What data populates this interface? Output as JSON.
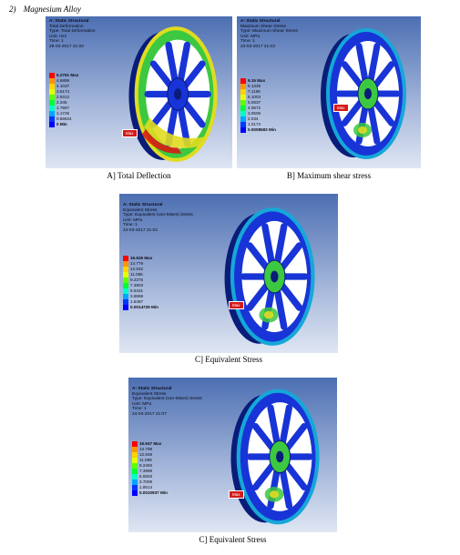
{
  "heading": {
    "number": "2)",
    "text": "Magnesium Alloy"
  },
  "panels": [
    {
      "caption": "A] Total Deflection",
      "info": [
        "A: Static Structural",
        "Total Deformation",
        "Type: Total Deformation",
        "Unit: mm",
        "Time: 1",
        "29-03-2017 21:00"
      ],
      "legend_max": "5.2761 Max",
      "legend_values": [
        "4.6899",
        "4.1037",
        "3.5174",
        "2.9312",
        "2.345",
        "1.7587",
        "1.1725",
        "0.58624"
      ],
      "legend_min": "0 Min",
      "max_tag": "Max"
    },
    {
      "caption": "B] Maximum shear stress",
      "info": [
        "A: Static Structural",
        "Maximum Shear Stress",
        "Type: Maximum Shear Stress",
        "Unit: MPa",
        "Time: 1",
        "24-03-2017 21:03"
      ],
      "legend_max": "9.15 Max",
      "legend_values": [
        "8.1335",
        "7.1169",
        "6.1003",
        "5.0837",
        "4.0672",
        "3.0506",
        "2.034",
        "1.0174"
      ],
      "legend_min": "0.0008583 Min",
      "max_tag": "Max"
    },
    {
      "caption": "C] Equivalent Stress",
      "info": [
        "A: Static Structural",
        "Equivalent Stress",
        "Type: Equivalent (von-Mises) Stress",
        "Unit: MPa",
        "Time: 1",
        "24-03-2017 21:03"
      ],
      "legend_max": "16.626 Max",
      "legend_values": [
        "14.779",
        "12.932",
        "11.085",
        "9.2375",
        "7.3903",
        "5.5431",
        "3.6959",
        "1.8487"
      ],
      "legend_min": "0.0014729 Min",
      "max_tag": "Max"
    },
    {
      "caption": "C] Equivalent Stress",
      "info": [
        "A: Static Structural",
        "Equivalent Stress",
        "Type: Equivalent (von-Mises) Stress",
        "Unit: MPa",
        "Time: 1",
        "24-03-2017 21:07"
      ],
      "legend_max": "16.647 Max",
      "legend_values": [
        "14.798",
        "12.948",
        "11.099",
        "9.2493",
        "7.3998",
        "5.5503",
        "3.7008",
        "1.8514"
      ],
      "legend_min": "0.0010937 Min",
      "max_tag": "Max"
    }
  ],
  "legend_colors": [
    "#ff0000",
    "#ff9400",
    "#ffd200",
    "#e6ff00",
    "#5eff00",
    "#00ff34",
    "#00ffc8",
    "#00a6ff",
    "#0036ff",
    "#0000ff"
  ],
  "wheel_colors": {
    "blue": "#1834d6",
    "dark": "#0a1c7a",
    "cyan": "#16a7d8",
    "green": "#3cc840",
    "yellow": "#e0dc20",
    "red": "#e01010"
  }
}
